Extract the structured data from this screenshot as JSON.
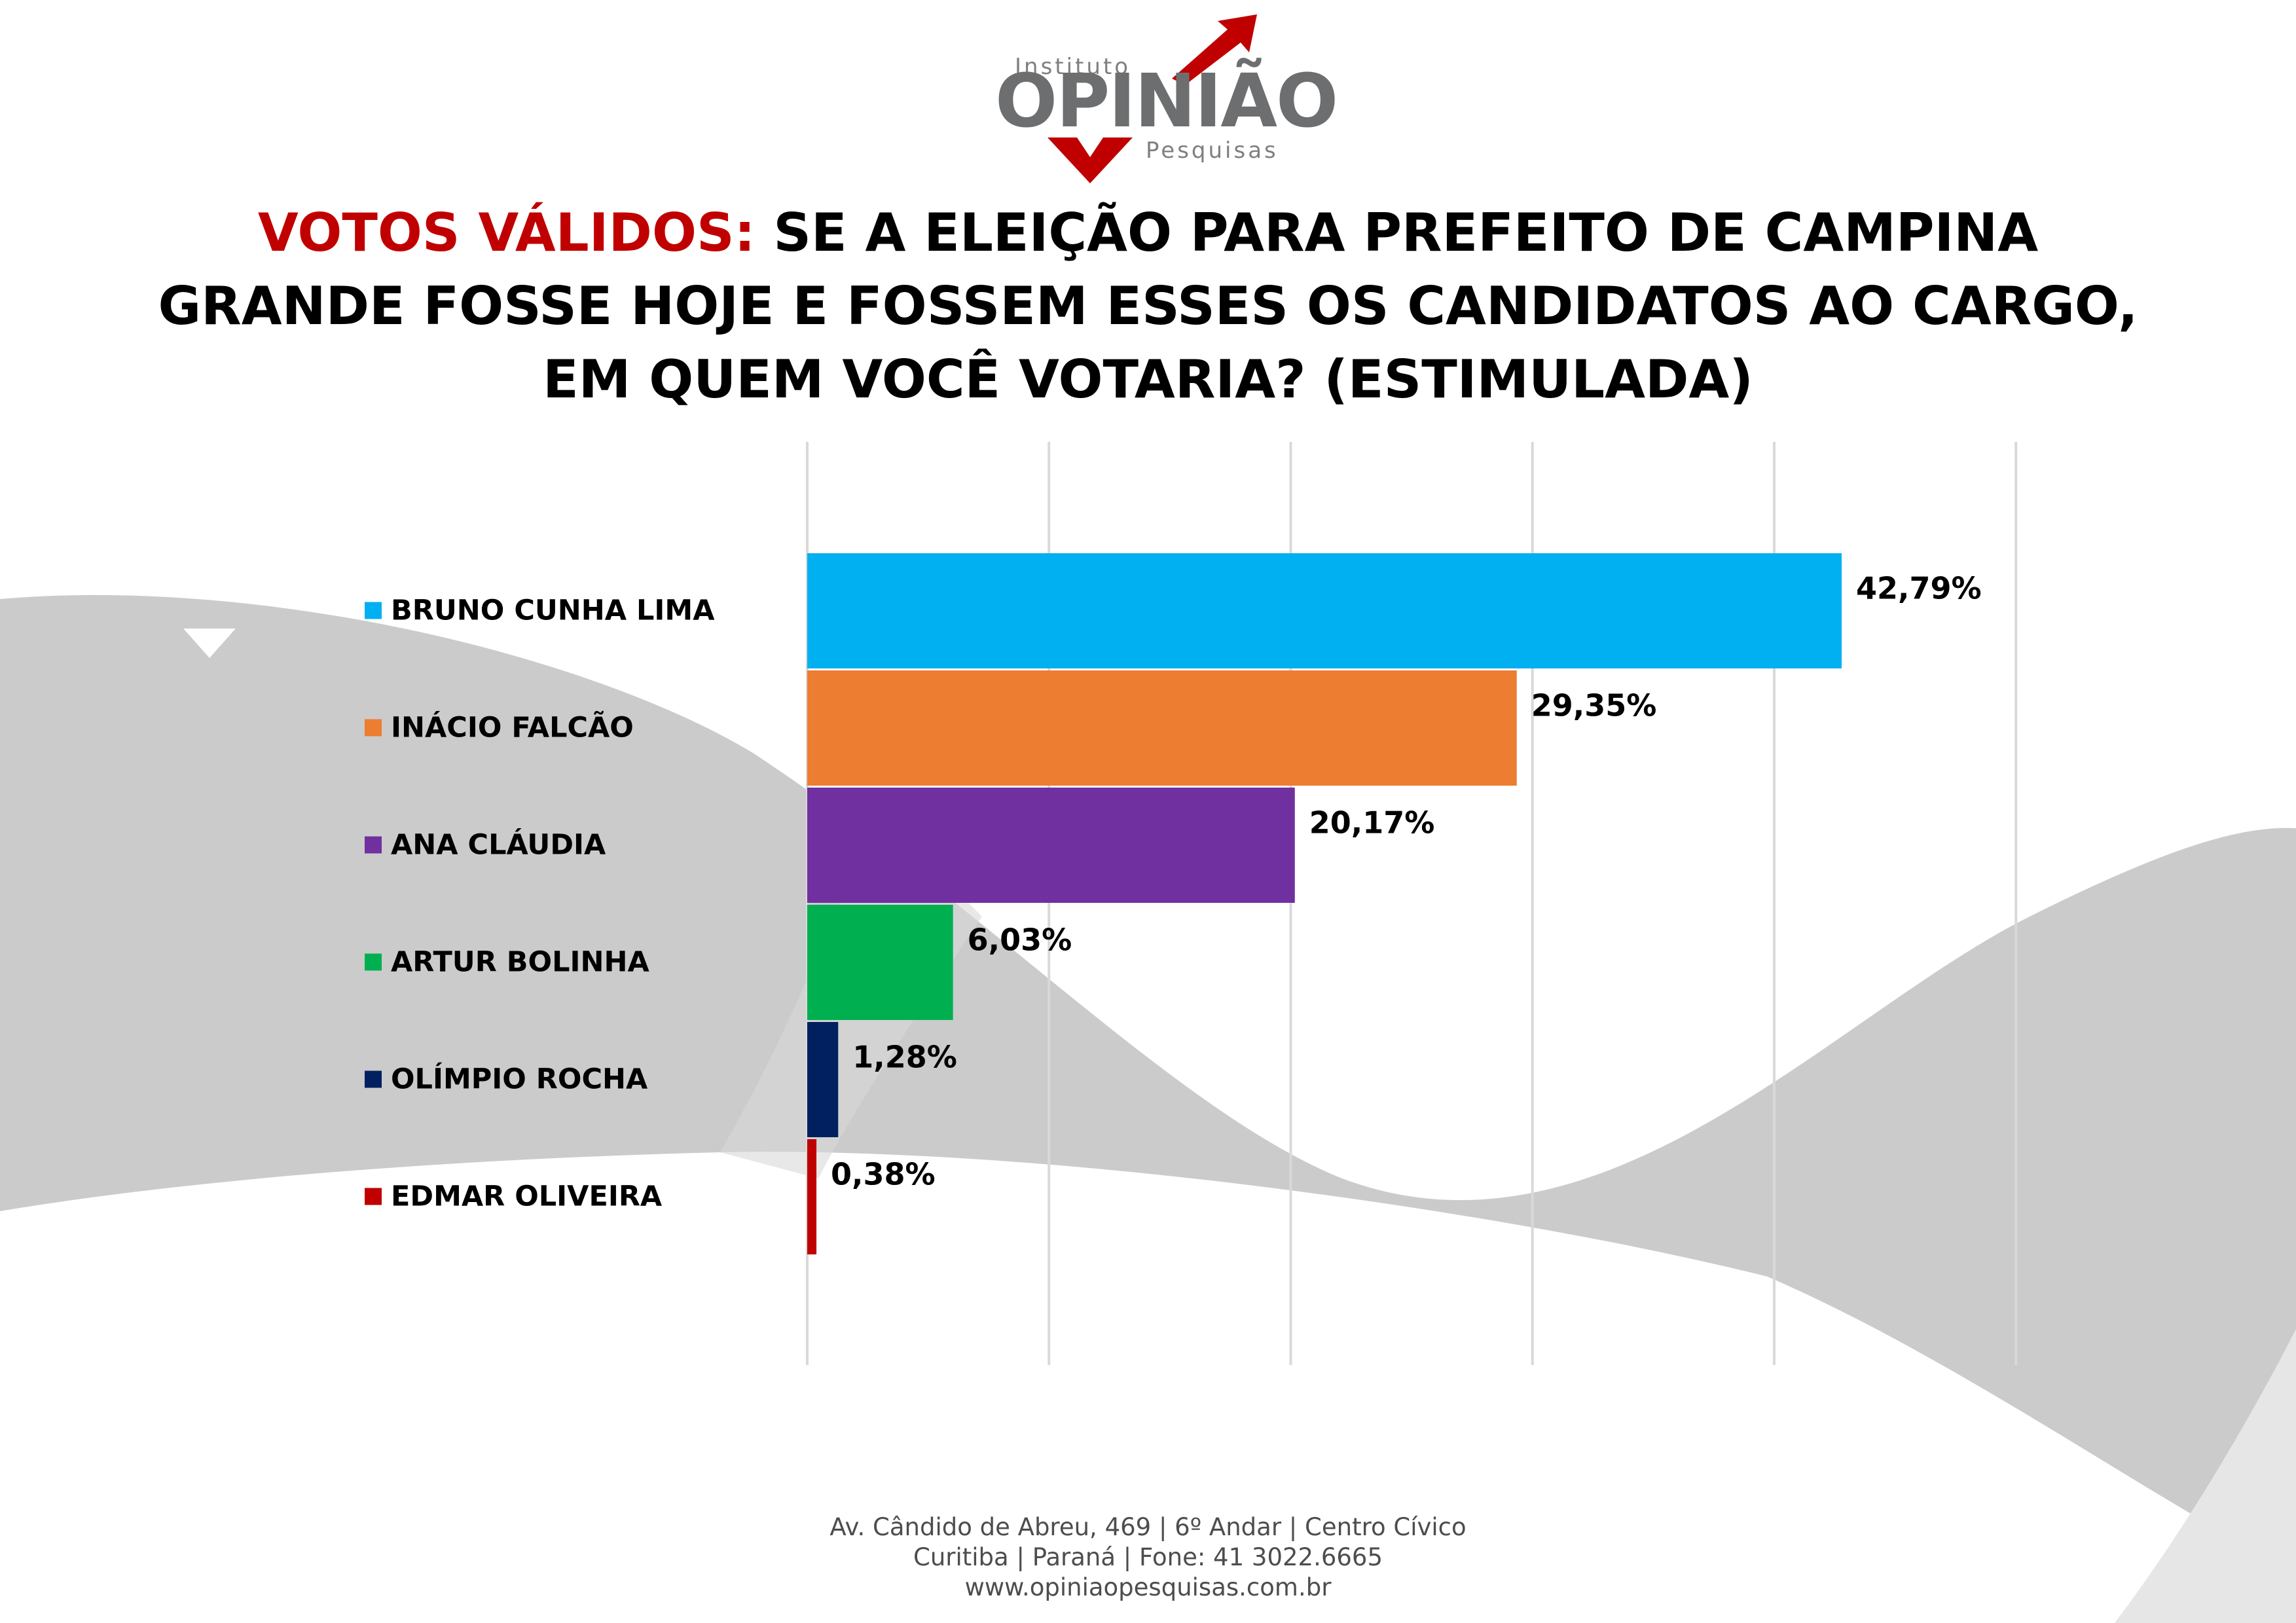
{
  "logo": {
    "top_text": "Instituto",
    "name": "OPINIÃO",
    "bottom_text": "Pesquisas"
  },
  "title": {
    "highlight": "VOTOS VÁLIDOS:",
    "text": " SE A ELEIÇÃO PARA PREFEITO DE CAMPINA GRANDE FOSSE HOJE E FOSSEM ESSES OS CANDIDATOS AO CARGO, EM QUEM VOCÊ VOTARIA? (ESTIMULADA)"
  },
  "colors": {
    "title_highlight": "#c00000",
    "gridline": "#d9d9d9",
    "background_band": "#c8c8c8"
  },
  "chart_data": {
    "type": "bar",
    "orientation": "horizontal",
    "categories": [
      "BRUNO CUNHA LIMA",
      "INÁCIO FALCÃO",
      "ANA CLÁUDIA",
      "ARTUR BOLINHA",
      "OLÍMPIO ROCHA",
      "EDMAR OLIVEIRA"
    ],
    "values": [
      42.79,
      29.35,
      20.17,
      6.03,
      1.28,
      0.38
    ],
    "value_labels": [
      "42,79%",
      "29,35%",
      "20,17%",
      "6,03%",
      "1,28%",
      "0,38%"
    ],
    "colors": [
      "#00b0f0",
      "#ed7d31",
      "#7030a0",
      "#00b050",
      "#002060",
      "#c00000"
    ],
    "xlim": [
      0,
      50
    ],
    "grid": true,
    "legend": "left"
  },
  "footer": {
    "line1": "Av. Cândido de Abreu, 469 | 6º Andar | Centro Cívico",
    "line2": "Curitiba | Paraná | Fone: 41 3022.6665",
    "line3": "www.opiniaopesquisas.com.br"
  }
}
